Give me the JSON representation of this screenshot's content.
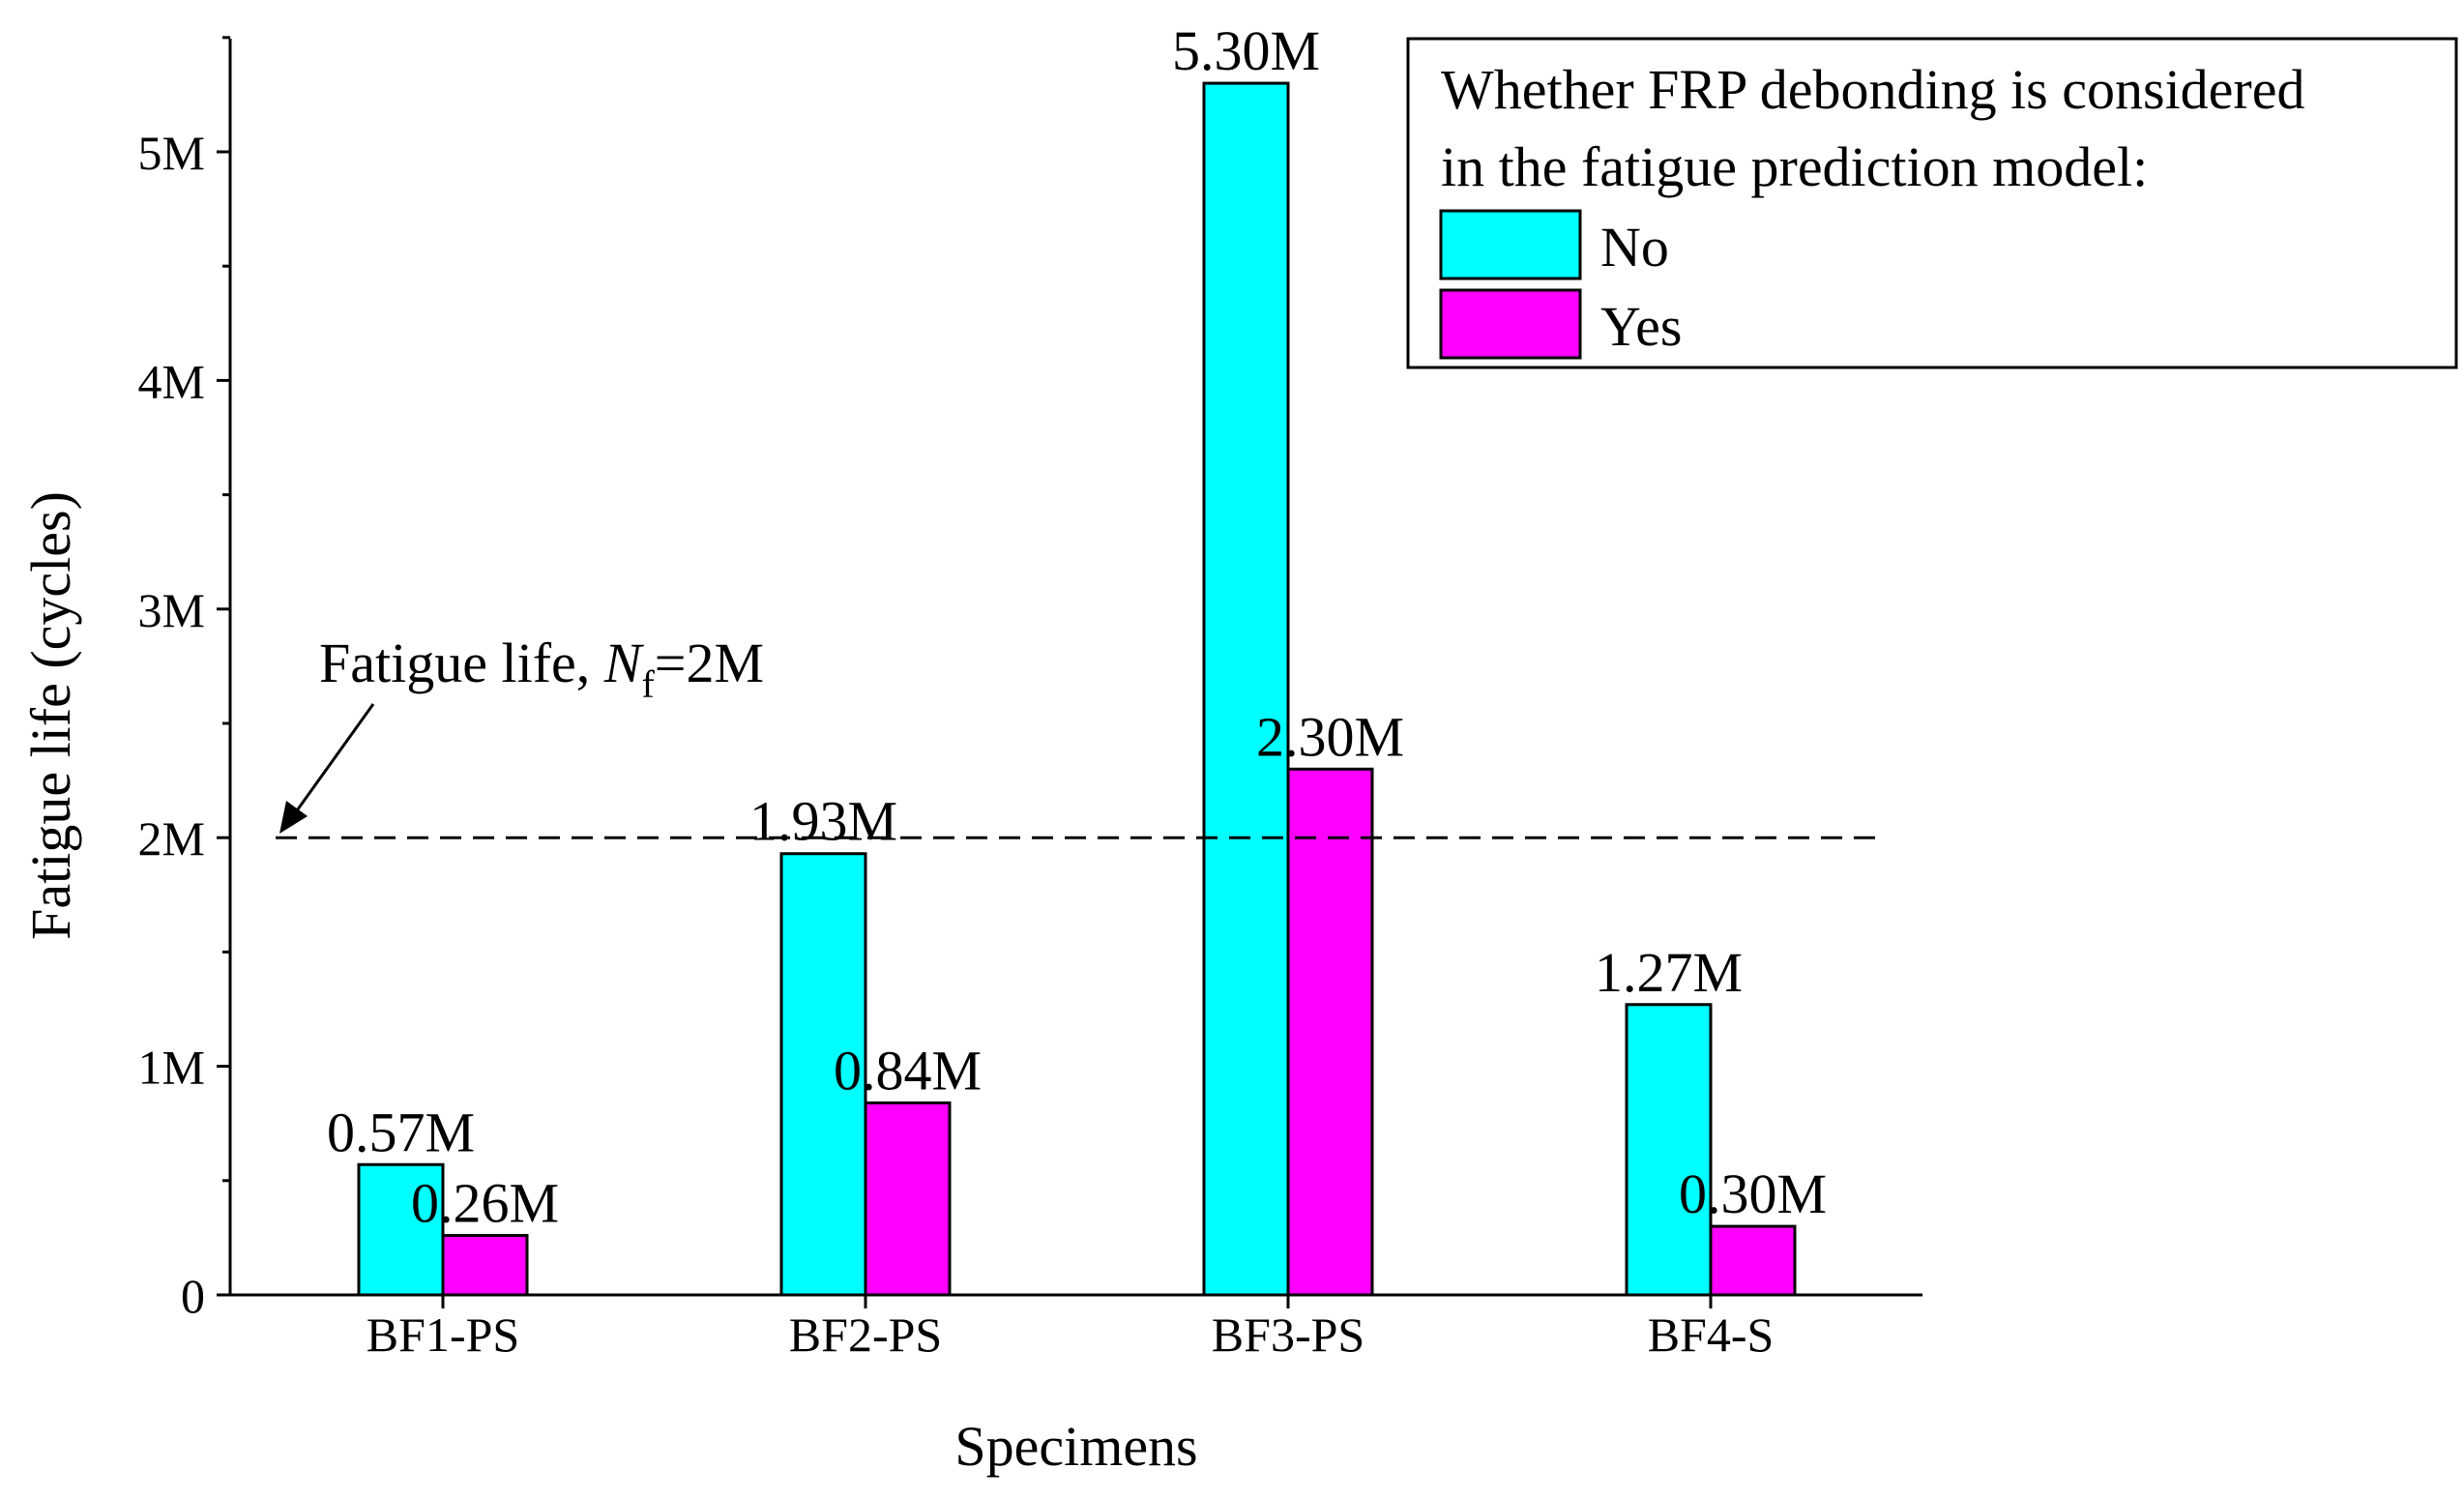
{
  "chart_data": {
    "type": "bar",
    "title": "",
    "xlabel": "Specimens",
    "ylabel": "Fatigue life (cycles)",
    "ylim": [
      0,
      5.5
    ],
    "yticks": [
      0,
      1,
      2,
      3,
      4,
      5
    ],
    "ytick_labels": [
      "0",
      "1M",
      "2M",
      "3M",
      "4M",
      "5M"
    ],
    "categories": [
      "BF1-PS",
      "BF2-PS",
      "BF3-PS",
      "BF4-S"
    ],
    "series": [
      {
        "name": "No",
        "color": "#00FFFF",
        "values": [
          0.57,
          1.93,
          5.3,
          1.27
        ],
        "labels": [
          "0.57M",
          "1.93M",
          "5.30M",
          "1.27M"
        ]
      },
      {
        "name": "Yes",
        "color": "#FF00FF",
        "values": [
          0.26,
          0.84,
          2.3,
          0.3
        ],
        "labels": [
          "0.26M",
          "0.84M",
          "2.30M",
          "0.30M"
        ]
      }
    ],
    "legend": {
      "title_line1": "Whether FRP debonding is considered",
      "title_line2": "in the fatigue prediction model:",
      "position": "top-right"
    },
    "reference_line": {
      "value": 2,
      "style": "dashed",
      "label_prefix": "Fatigue life, ",
      "label_symbol": "N",
      "label_subscript": "f",
      "label_suffix": "=2M"
    }
  }
}
